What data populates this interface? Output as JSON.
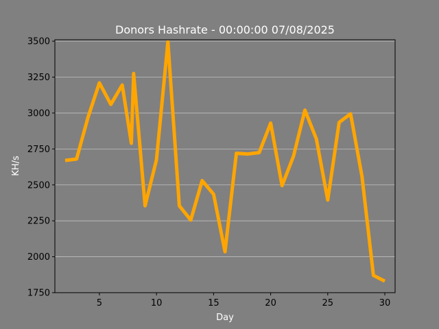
{
  "chart_data": {
    "type": "line",
    "title": "Donors Hashrate - 00:00:00 07/08/2025",
    "xlabel": "Day",
    "ylabel": "KH/s",
    "xlim": [
      1.1,
      30.9
    ],
    "ylim": [
      1750,
      3510
    ],
    "x_ticks": [
      5,
      10,
      15,
      20,
      25,
      30
    ],
    "y_ticks": [
      1750,
      2000,
      2250,
      2500,
      2750,
      3000,
      3250,
      3500
    ],
    "grid": "horizontal",
    "series": [
      {
        "color": "#ffa500",
        "x": [
          2,
          3,
          4,
          5,
          6,
          7,
          7.8,
          8,
          9,
          10,
          11,
          12,
          13,
          14,
          15,
          16,
          17,
          18,
          19,
          20,
          21,
          22,
          23,
          24,
          25,
          26,
          27,
          28,
          29,
          30
        ],
        "y": [
          2670,
          2680,
          2970,
          3210,
          3060,
          3195,
          2790,
          3275,
          2355,
          2675,
          3495,
          2355,
          2255,
          2530,
          2435,
          2035,
          2720,
          2715,
          2725,
          2930,
          2495,
          2700,
          3020,
          2820,
          2395,
          2935,
          2995,
          2560,
          1870,
          1830
        ]
      }
    ]
  },
  "colors": {
    "background": "#808080",
    "line": "#ffa500",
    "grid": "#bfbfbf"
  }
}
